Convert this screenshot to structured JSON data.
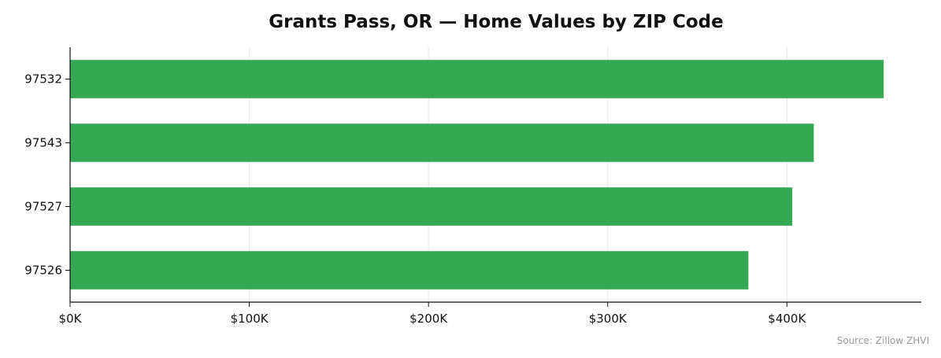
{
  "chart_data": {
    "type": "bar",
    "orientation": "horizontal",
    "title": "Grants Pass, OR — Home Values by ZIP Code",
    "xlabel": "",
    "ylabel": "",
    "categories": [
      "97532",
      "97543",
      "97527",
      "97526"
    ],
    "values": [
      454000,
      415000,
      403000,
      378500
    ],
    "xlim": [
      0,
      475000
    ],
    "xticks": [
      0,
      100000,
      200000,
      300000,
      400000
    ],
    "xtick_labels": [
      "$0K",
      "$100K",
      "$200K",
      "$300K",
      "$400K"
    ],
    "grid": "vertical",
    "legend": "none",
    "bar_color": "#34a853",
    "source": "Source: Zillow ZHVI"
  }
}
